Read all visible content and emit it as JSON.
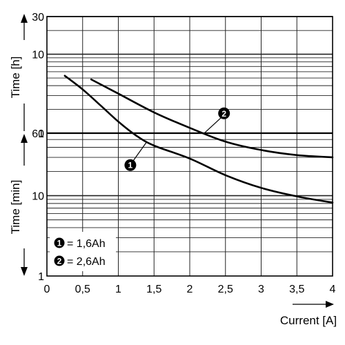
{
  "chart_data": {
    "type": "line",
    "x": {
      "label": "Current [A]",
      "range": [
        0,
        4
      ],
      "ticks": [
        0,
        0.5,
        1,
        1.5,
        2,
        2.5,
        3,
        3.5,
        4
      ],
      "tick_labels": [
        "0",
        "0,5",
        "1",
        "1,5",
        "2",
        "2,5",
        "3",
        "3,5",
        "4"
      ]
    },
    "y_upper": {
      "label": "Time [h]",
      "unit": "h",
      "scale": "log",
      "range": [
        1,
        30
      ],
      "tick_labels": [
        {
          "value": 30,
          "label": "30"
        },
        {
          "value": 10,
          "label": "10"
        },
        {
          "value": 1,
          "label": "1"
        }
      ]
    },
    "y_lower": {
      "label": "Time [min]",
      "unit": "min",
      "scale": "log",
      "range": [
        1,
        60
      ],
      "tick_labels": [
        {
          "value": 60,
          "label": "60"
        },
        {
          "value": 10,
          "label": "10"
        },
        {
          "value": 1,
          "label": "1"
        }
      ]
    },
    "grid": true,
    "series": [
      {
        "name": "1,6Ah",
        "marker": "1",
        "points": [
          {
            "x": 0.25,
            "minutes": 320
          },
          {
            "x": 0.5,
            "minutes": 215
          },
          {
            "x": 0.75,
            "minutes": 135
          },
          {
            "x": 1.0,
            "minutes": 84
          },
          {
            "x": 1.25,
            "minutes": 56
          },
          {
            "x": 1.5,
            "minutes": 42
          },
          {
            "x": 2.0,
            "minutes": 29
          },
          {
            "x": 2.5,
            "minutes": 18
          },
          {
            "x": 3.0,
            "minutes": 12.5
          },
          {
            "x": 3.5,
            "minutes": 9.8
          },
          {
            "x": 4.0,
            "minutes": 8.2
          }
        ],
        "callout_at_x": 1.4
      },
      {
        "name": "2,6Ah",
        "marker": "2",
        "points": [
          {
            "x": 0.62,
            "minutes": 288
          },
          {
            "x": 1.0,
            "minutes": 190
          },
          {
            "x": 1.5,
            "minutes": 110
          },
          {
            "x": 2.0,
            "minutes": 70
          },
          {
            "x": 2.5,
            "minutes": 47
          },
          {
            "x": 3.0,
            "minutes": 37
          },
          {
            "x": 3.5,
            "minutes": 32
          },
          {
            "x": 4.0,
            "minutes": 30
          }
        ],
        "callout_at_x": 2.2
      }
    ],
    "legend": {
      "placement": "bottom-left",
      "items": [
        {
          "marker": "1",
          "label": "= 1,6Ah"
        },
        {
          "marker": "2",
          "label": "= 2,6Ah"
        }
      ]
    }
  }
}
